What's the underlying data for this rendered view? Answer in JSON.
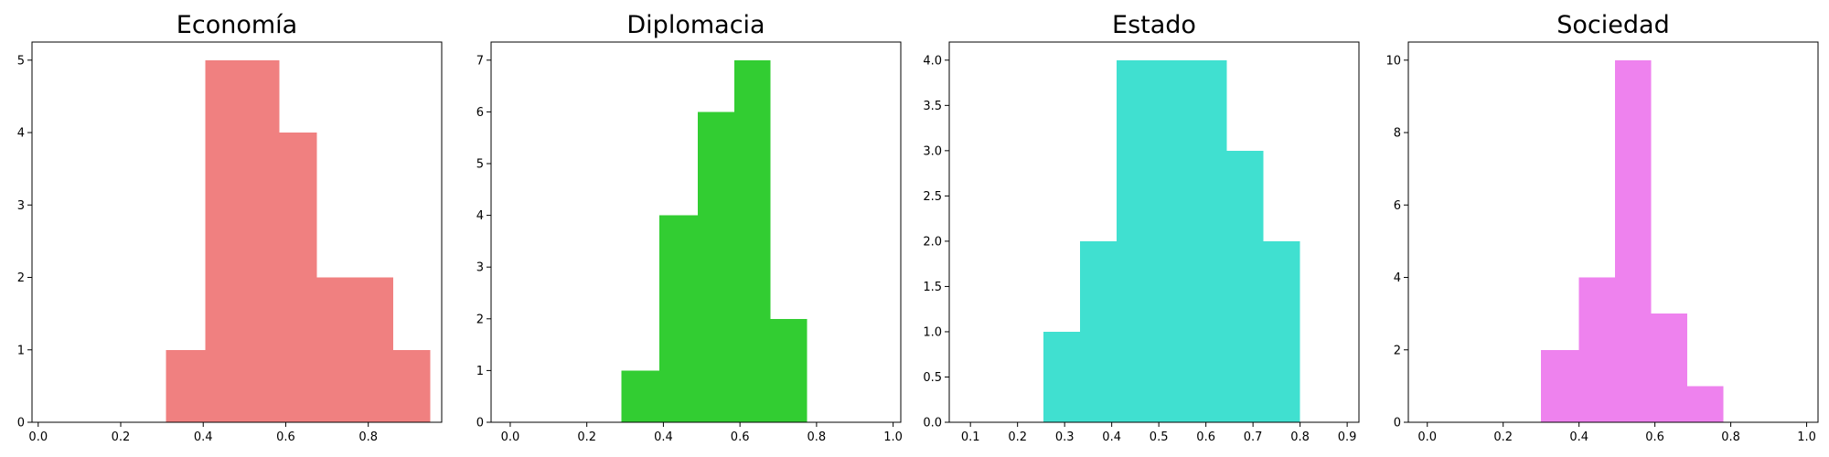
{
  "chart_data": [
    {
      "type": "bar",
      "title": "Economía",
      "color": "#f08080",
      "xlim": [
        -0.015,
        0.978
      ],
      "ylim": [
        0,
        5.25
      ],
      "xticks": [
        0.0,
        0.2,
        0.4,
        0.6,
        0.8
      ],
      "xtick_labels": [
        "0.0",
        "0.2",
        "0.4",
        "0.6",
        "0.8"
      ],
      "yticks": [
        0,
        1,
        2,
        3,
        4,
        5
      ],
      "ytick_labels": [
        "0",
        "1",
        "2",
        "3",
        "4",
        "5"
      ],
      "bins": [
        {
          "x0": 0.31,
          "x1": 0.405,
          "value": 1
        },
        {
          "x0": 0.405,
          "x1": 0.5,
          "value": 5
        },
        {
          "x0": 0.5,
          "x1": 0.585,
          "value": 5
        },
        {
          "x0": 0.585,
          "x1": 0.675,
          "value": 4
        },
        {
          "x0": 0.675,
          "x1": 0.765,
          "value": 2
        },
        {
          "x0": 0.765,
          "x1": 0.86,
          "value": 2
        },
        {
          "x0": 0.86,
          "x1": 0.95,
          "value": 1
        }
      ]
    },
    {
      "type": "bar",
      "title": "Diplomacia",
      "color": "#32cd32",
      "xlim": [
        -0.05,
        1.02
      ],
      "ylim": [
        0,
        7.35
      ],
      "xticks": [
        0.0,
        0.2,
        0.4,
        0.6,
        0.8,
        1.0
      ],
      "xtick_labels": [
        "0.0",
        "0.2",
        "0.4",
        "0.6",
        "0.8",
        "1.0"
      ],
      "yticks": [
        0,
        1,
        2,
        3,
        4,
        5,
        6,
        7
      ],
      "ytick_labels": [
        "0",
        "1",
        "2",
        "3",
        "4",
        "5",
        "6",
        "7"
      ],
      "bins": [
        {
          "x0": 0.29,
          "x1": 0.39,
          "value": 1
        },
        {
          "x0": 0.39,
          "x1": 0.49,
          "value": 4
        },
        {
          "x0": 0.49,
          "x1": 0.585,
          "value": 6
        },
        {
          "x0": 0.585,
          "x1": 0.68,
          "value": 7
        },
        {
          "x0": 0.68,
          "x1": 0.775,
          "value": 2
        }
      ]
    },
    {
      "type": "bar",
      "title": "Estado",
      "color": "#40e0d0",
      "xlim": [
        0.055,
        0.925
      ],
      "ylim": [
        0,
        4.2
      ],
      "xticks": [
        0.1,
        0.2,
        0.3,
        0.4,
        0.5,
        0.6,
        0.7,
        0.8,
        0.9
      ],
      "xtick_labels": [
        "0.1",
        "0.2",
        "0.3",
        "0.4",
        "0.5",
        "0.6",
        "0.7",
        "0.8",
        "0.9"
      ],
      "yticks": [
        0.0,
        0.5,
        1.0,
        1.5,
        2.0,
        2.5,
        3.0,
        3.5,
        4.0
      ],
      "ytick_labels": [
        "0.0",
        "0.5",
        "1.0",
        "1.5",
        "2.0",
        "2.5",
        "3.0",
        "3.5",
        "4.0"
      ],
      "bins": [
        {
          "x0": 0.255,
          "x1": 0.333,
          "value": 1
        },
        {
          "x0": 0.333,
          "x1": 0.41,
          "value": 2
        },
        {
          "x0": 0.41,
          "x1": 0.488,
          "value": 4
        },
        {
          "x0": 0.488,
          "x1": 0.566,
          "value": 4
        },
        {
          "x0": 0.566,
          "x1": 0.644,
          "value": 4
        },
        {
          "x0": 0.644,
          "x1": 0.722,
          "value": 3
        },
        {
          "x0": 0.722,
          "x1": 0.8,
          "value": 2
        }
      ]
    },
    {
      "type": "bar",
      "title": "Sociedad",
      "color": "#ee82ee",
      "xlim": [
        -0.05,
        1.03
      ],
      "ylim": [
        0,
        10.5
      ],
      "xticks": [
        0.0,
        0.2,
        0.4,
        0.6,
        0.8,
        1.0
      ],
      "xtick_labels": [
        "0.0",
        "0.2",
        "0.4",
        "0.6",
        "0.8",
        "1.0"
      ],
      "yticks": [
        0,
        2,
        4,
        6,
        8,
        10
      ],
      "ytick_labels": [
        "0",
        "2",
        "4",
        "6",
        "8",
        "10"
      ],
      "bins": [
        {
          "x0": 0.3,
          "x1": 0.4,
          "value": 2
        },
        {
          "x0": 0.4,
          "x1": 0.495,
          "value": 4
        },
        {
          "x0": 0.495,
          "x1": 0.59,
          "value": 10
        },
        {
          "x0": 0.59,
          "x1": 0.685,
          "value": 3
        },
        {
          "x0": 0.685,
          "x1": 0.78,
          "value": 1
        }
      ]
    }
  ]
}
